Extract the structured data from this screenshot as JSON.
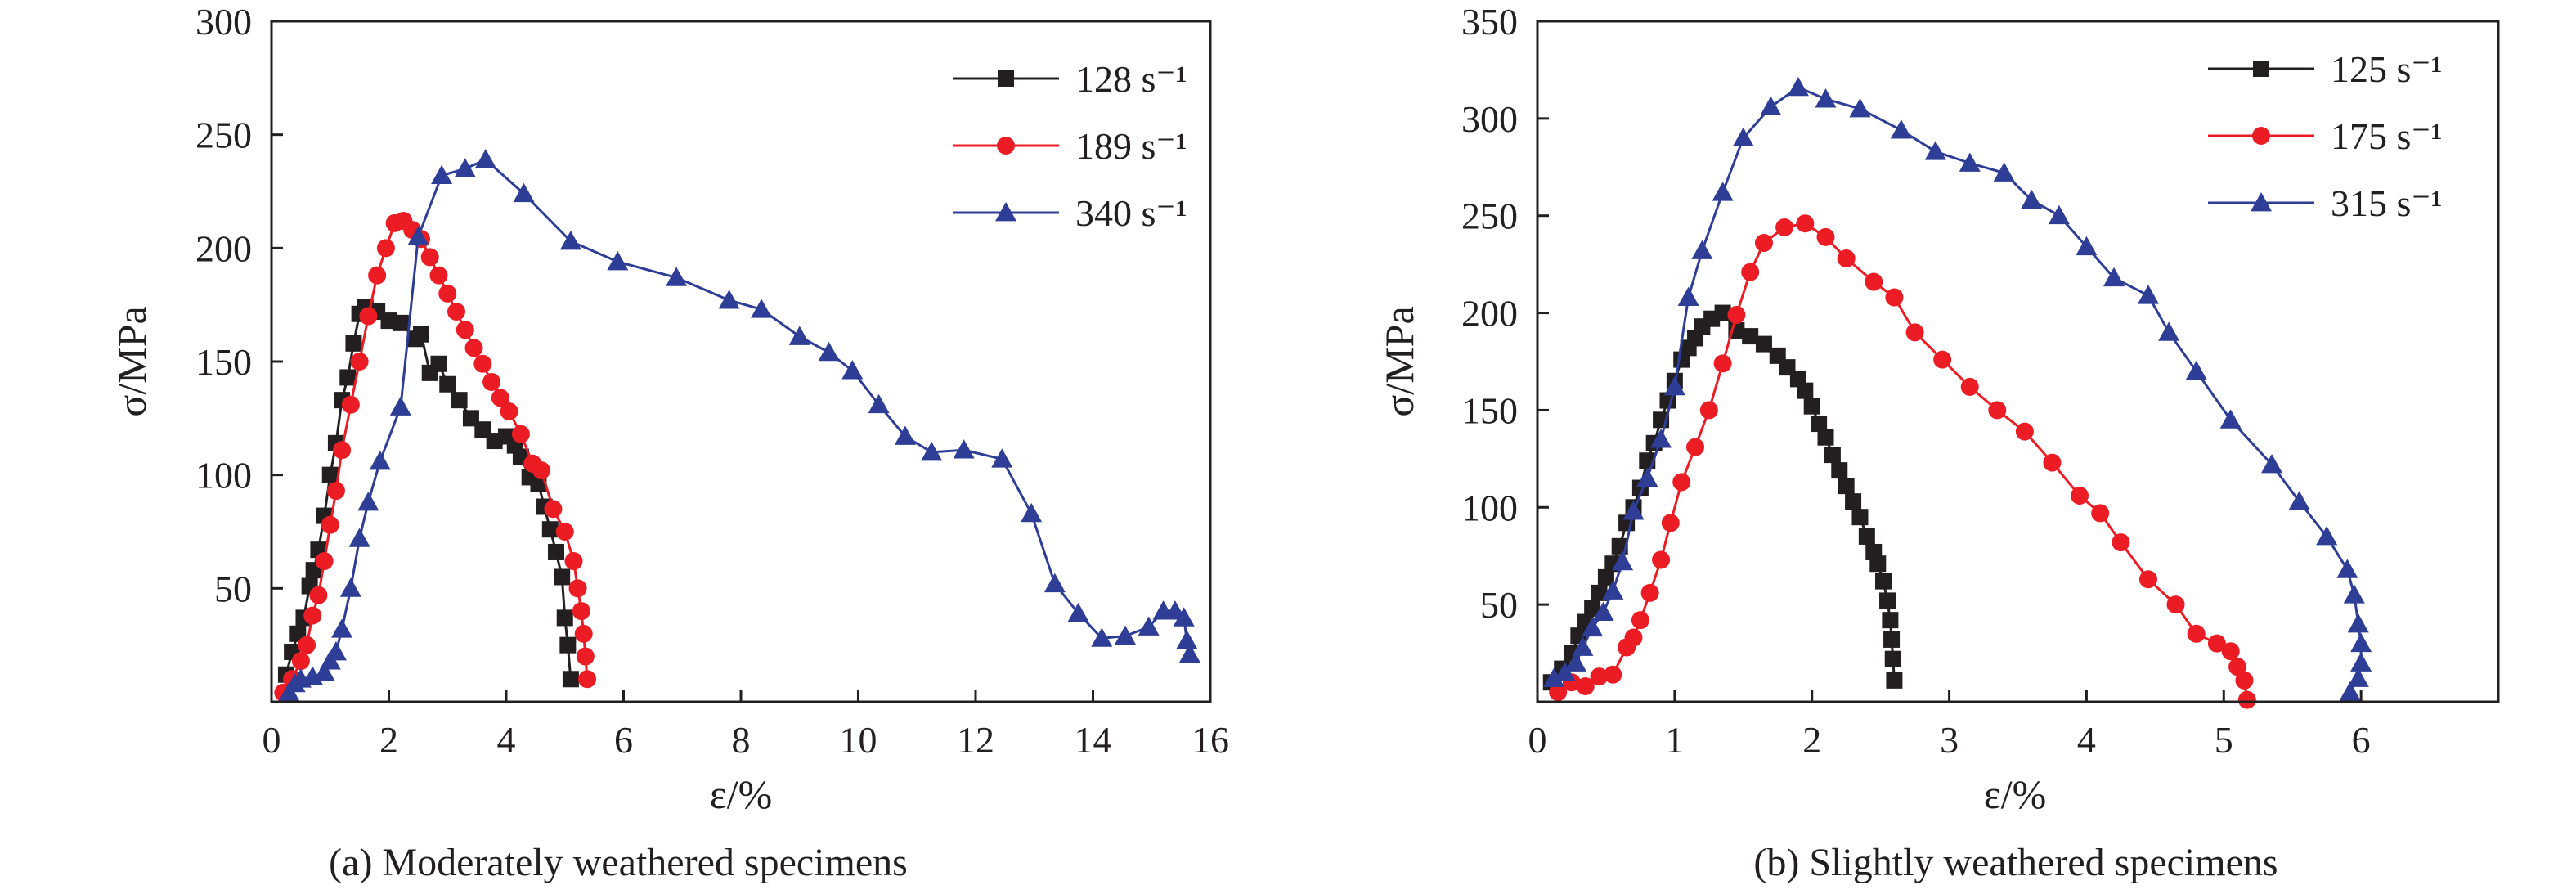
{
  "figure": {
    "captions": [
      "(a) Moderately weathered specimens",
      "(b) Slightly weathered specimens"
    ]
  },
  "chart_data": [
    {
      "type": "line",
      "caption": "(a) Moderately weathered specimens",
      "xlabel": "ε/%",
      "ylabel": "σ/MPa",
      "xlim": [
        0,
        16
      ],
      "ylim": [
        0,
        300
      ],
      "xticks": [
        0,
        2,
        4,
        6,
        8,
        10,
        12,
        14,
        16
      ],
      "yticks": [
        50,
        100,
        150,
        200,
        250,
        300
      ],
      "grid": false,
      "legend_position": "top-right",
      "series": [
        {
          "name": "128 s⁻¹",
          "color": "#231f20",
          "marker": "square",
          "x": [
            0.25,
            0.35,
            0.45,
            0.55,
            0.65,
            0.72,
            0.8,
            0.9,
            1.0,
            1.1,
            1.2,
            1.3,
            1.4,
            1.5,
            1.6,
            1.8,
            2.0,
            2.2,
            2.45,
            2.55,
            2.7,
            2.85,
            3.0,
            3.2,
            3.4,
            3.6,
            3.8,
            4.0,
            4.15,
            4.25,
            4.4,
            4.55,
            4.65,
            4.75,
            4.85,
            4.95,
            5.0,
            5.05,
            5.1
          ],
          "y": [
            12,
            22,
            30,
            37,
            51,
            58,
            67,
            82,
            100,
            114,
            133,
            143,
            158,
            171,
            174,
            172,
            168,
            167,
            160,
            162,
            145,
            149,
            140,
            133,
            125,
            120,
            115,
            117,
            113,
            108,
            99,
            96,
            86,
            76,
            66,
            55,
            37,
            25,
            10
          ]
        },
        {
          "name": "189 s⁻¹",
          "color": "#ec1c24",
          "marker": "circle",
          "x": [
            0.2,
            0.35,
            0.5,
            0.6,
            0.7,
            0.8,
            0.9,
            1.0,
            1.1,
            1.2,
            1.35,
            1.5,
            1.65,
            1.8,
            1.95,
            2.1,
            2.25,
            2.4,
            2.55,
            2.7,
            2.85,
            3.0,
            3.15,
            3.3,
            3.45,
            3.6,
            3.75,
            3.9,
            4.05,
            4.25,
            4.45,
            4.6,
            4.8,
            5.0,
            5.15,
            5.22,
            5.28,
            5.32,
            5.35,
            5.38
          ],
          "y": [
            4,
            10,
            18,
            25,
            38,
            47,
            62,
            78,
            93,
            111,
            131,
            150,
            170,
            188,
            200,
            211,
            212,
            208,
            204,
            196,
            188,
            180,
            172,
            164,
            156,
            149,
            141,
            134,
            128,
            118,
            105,
            102,
            85,
            75,
            62,
            50,
            40,
            30,
            20,
            10
          ]
        },
        {
          "name": "340 s⁻¹",
          "color": "#2e3e97",
          "marker": "triangle",
          "x": [
            0.3,
            0.4,
            0.5,
            0.7,
            0.9,
            1.0,
            1.1,
            1.2,
            1.35,
            1.5,
            1.65,
            1.85,
            2.2,
            2.5,
            2.9,
            3.3,
            3.65,
            4.3,
            5.1,
            5.9,
            6.9,
            7.8,
            8.35,
            9.0,
            9.5,
            9.9,
            10.35,
            10.8,
            11.25,
            11.8,
            12.45,
            12.95,
            13.35,
            13.75,
            14.15,
            14.55,
            14.95,
            15.2,
            15.4,
            15.55,
            15.6,
            15.65
          ],
          "y": [
            4,
            8,
            10,
            11,
            13,
            18,
            22,
            32,
            50,
            72,
            88,
            106,
            130,
            205,
            232,
            235,
            239,
            224,
            203,
            194,
            187,
            177,
            173,
            161,
            154,
            146,
            131,
            117,
            110,
            111,
            107,
            83,
            52,
            39,
            28,
            29,
            33,
            40,
            40,
            37,
            27,
            21
          ]
        }
      ]
    },
    {
      "type": "line",
      "caption": "(b) Slightly weathered specimens",
      "xlabel": "ε/%",
      "ylabel": "σ/MPa",
      "xlim": [
        0,
        7
      ],
      "ylim": [
        0,
        350
      ],
      "xticks": [
        0,
        1,
        2,
        3,
        4,
        5,
        6
      ],
      "yticks": [
        50,
        100,
        150,
        200,
        250,
        300,
        350
      ],
      "grid": false,
      "legend_position": "top-right",
      "series": [
        {
          "name": "125 s⁻¹",
          "color": "#231f20",
          "marker": "square",
          "x": [
            0.1,
            0.18,
            0.25,
            0.3,
            0.35,
            0.4,
            0.45,
            0.5,
            0.55,
            0.6,
            0.65,
            0.7,
            0.75,
            0.8,
            0.85,
            0.9,
            0.95,
            1.0,
            1.05,
            1.1,
            1.15,
            1.2,
            1.27,
            1.35,
            1.45,
            1.55,
            1.65,
            1.75,
            1.82,
            1.9,
            1.95,
            2.0,
            2.05,
            2.1,
            2.15,
            2.2,
            2.25,
            2.3,
            2.35,
            2.4,
            2.45,
            2.48,
            2.52,
            2.55,
            2.57,
            2.58,
            2.59,
            2.6
          ],
          "y": [
            10,
            17,
            25,
            34,
            41,
            48,
            56,
            64,
            71,
            80,
            92,
            100,
            110,
            124,
            133,
            145,
            155,
            165,
            176,
            182,
            187,
            193,
            197,
            200,
            191,
            188,
            184,
            178,
            172,
            166,
            160,
            152,
            143,
            136,
            127,
            119,
            111,
            103,
            95,
            85,
            77,
            71,
            62,
            52,
            42,
            32,
            22,
            11
          ]
        },
        {
          "name": "175 s⁻¹",
          "color": "#ec1c24",
          "marker": "circle",
          "x": [
            0.15,
            0.25,
            0.35,
            0.45,
            0.55,
            0.65,
            0.7,
            0.75,
            0.82,
            0.9,
            0.97,
            1.05,
            1.15,
            1.25,
            1.35,
            1.45,
            1.55,
            1.65,
            1.8,
            1.95,
            2.1,
            2.25,
            2.45,
            2.6,
            2.75,
            2.95,
            3.15,
            3.35,
            3.55,
            3.75,
            3.95,
            4.1,
            4.25,
            4.45,
            4.65,
            4.8,
            4.95,
            5.05,
            5.1,
            5.15,
            5.17
          ],
          "y": [
            5,
            10,
            8,
            13,
            14,
            28,
            33,
            42,
            56,
            73,
            92,
            113,
            131,
            150,
            174,
            199,
            221,
            236,
            244,
            246,
            239,
            228,
            216,
            208,
            190,
            176,
            162,
            150,
            139,
            123,
            106,
            97,
            82,
            63,
            50,
            35,
            30,
            26,
            18,
            11,
            1
          ]
        },
        {
          "name": "315 s⁻¹",
          "color": "#2e3e97",
          "marker": "triangle",
          "x": [
            0.12,
            0.2,
            0.28,
            0.33,
            0.4,
            0.48,
            0.55,
            0.62,
            0.7,
            0.8,
            0.9,
            1.0,
            1.1,
            1.2,
            1.35,
            1.5,
            1.7,
            1.9,
            2.1,
            2.35,
            2.65,
            2.9,
            3.15,
            3.4,
            3.6,
            3.8,
            4.0,
            4.2,
            4.45,
            4.6,
            4.8,
            5.05,
            5.35,
            5.55,
            5.75,
            5.9,
            5.95,
            5.98,
            6.0,
            6.0,
            5.98,
            5.92
          ],
          "y": [
            12,
            15,
            20,
            28,
            38,
            46,
            57,
            72,
            98,
            115,
            135,
            162,
            208,
            232,
            262,
            290,
            306,
            316,
            310,
            305,
            294,
            283,
            277,
            272,
            258,
            250,
            234,
            218,
            209,
            190,
            170,
            145,
            122,
            103,
            85,
            68,
            55,
            40,
            30,
            20,
            12,
            5
          ]
        }
      ]
    }
  ]
}
